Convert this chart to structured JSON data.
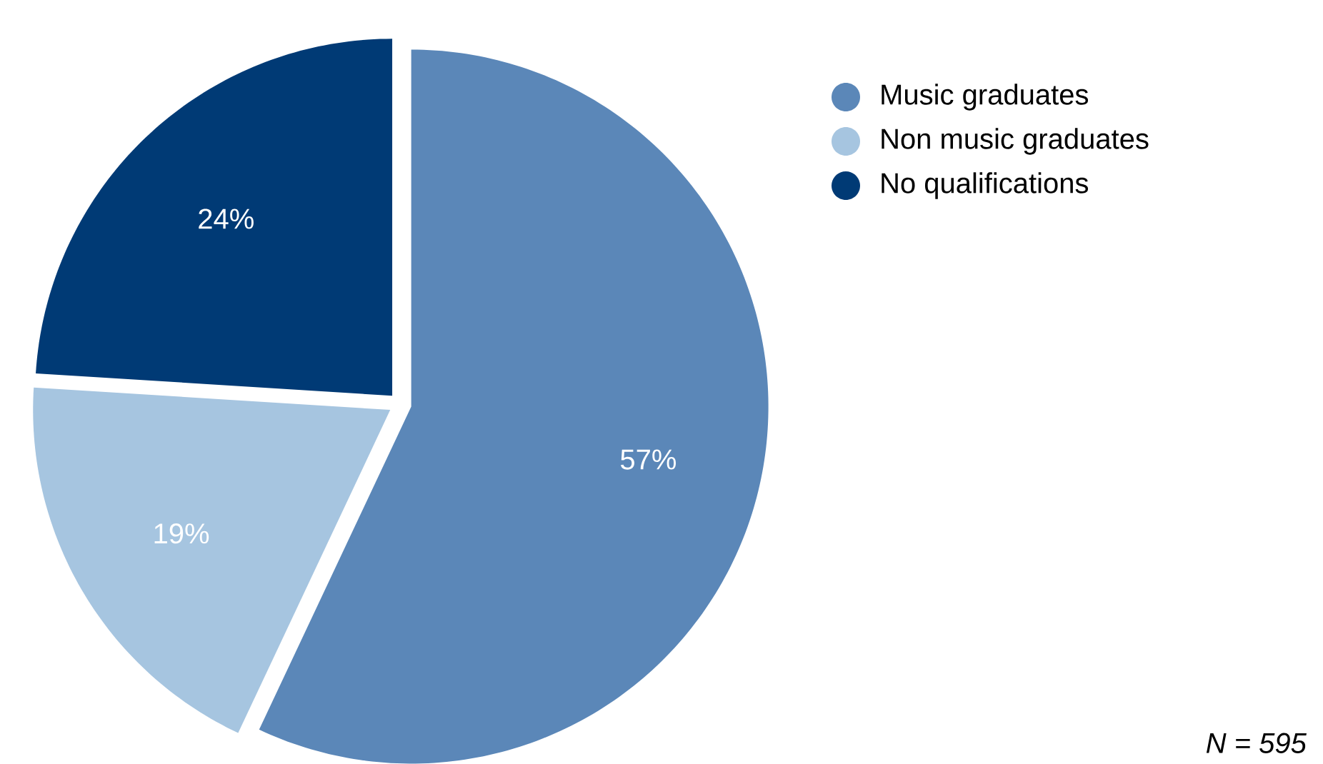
{
  "chart_data": {
    "type": "pie",
    "categories": [
      "Music graduates",
      "Non music graduates",
      "No qualifications"
    ],
    "values": [
      57,
      19,
      24
    ],
    "colors": [
      "#5b87b8",
      "#a6c5e0",
      "#003a75"
    ],
    "value_labels": [
      "57%",
      "19%",
      "24%"
    ],
    "legend": "top right",
    "annotations": [
      "N = 595"
    ]
  }
}
